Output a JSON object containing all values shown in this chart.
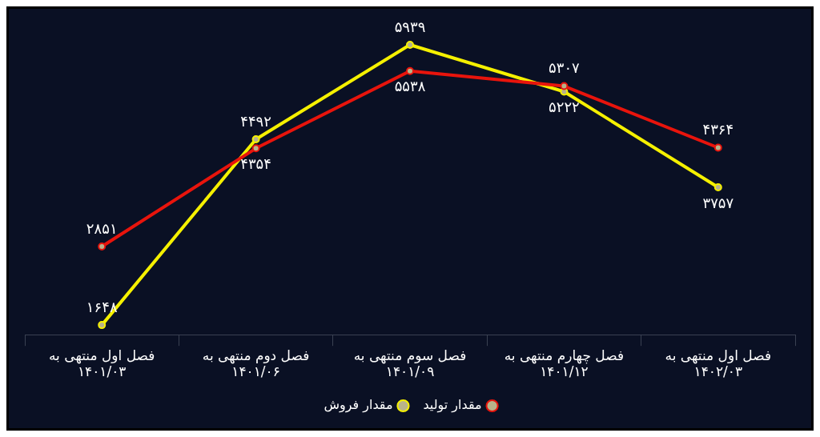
{
  "chart_data": {
    "type": "line",
    "categories": [
      "فصل اول منتهی به\n۱۴۰۱/۰۳",
      "فصل دوم منتهی به\n۱۴۰۱/۰۶",
      "فصل سوم منتهی به\n۱۴۰۱/۰۹",
      "فصل چهارم منتهی به\n۱۴۰۱/۱۲",
      "فصل اول منتهی به\n۱۴۰۲/۰۳"
    ],
    "series": [
      {
        "name": "مقدار تولید",
        "color": "#e8140c",
        "values": [
          2851,
          4354,
          5538,
          5307,
          4364
        ],
        "value_labels": [
          "۲۸۵۱",
          "۴۳۵۴",
          "۵۵۳۸",
          "۵۳۰۷",
          "۴۳۶۴"
        ]
      },
      {
        "name": "مقدار فروش",
        "color": "#f5f000",
        "values": [
          1648,
          4492,
          5939,
          5222,
          3757
        ],
        "value_labels": [
          "۱۶۴۸",
          "۴۴۹۲",
          "۵۹۳۹",
          "۵۲۲۲",
          "۳۷۵۷"
        ]
      }
    ],
    "grid": false,
    "legend": "bottom",
    "marker": "circle",
    "line_style": "solid",
    "tick_labels": "x"
  }
}
